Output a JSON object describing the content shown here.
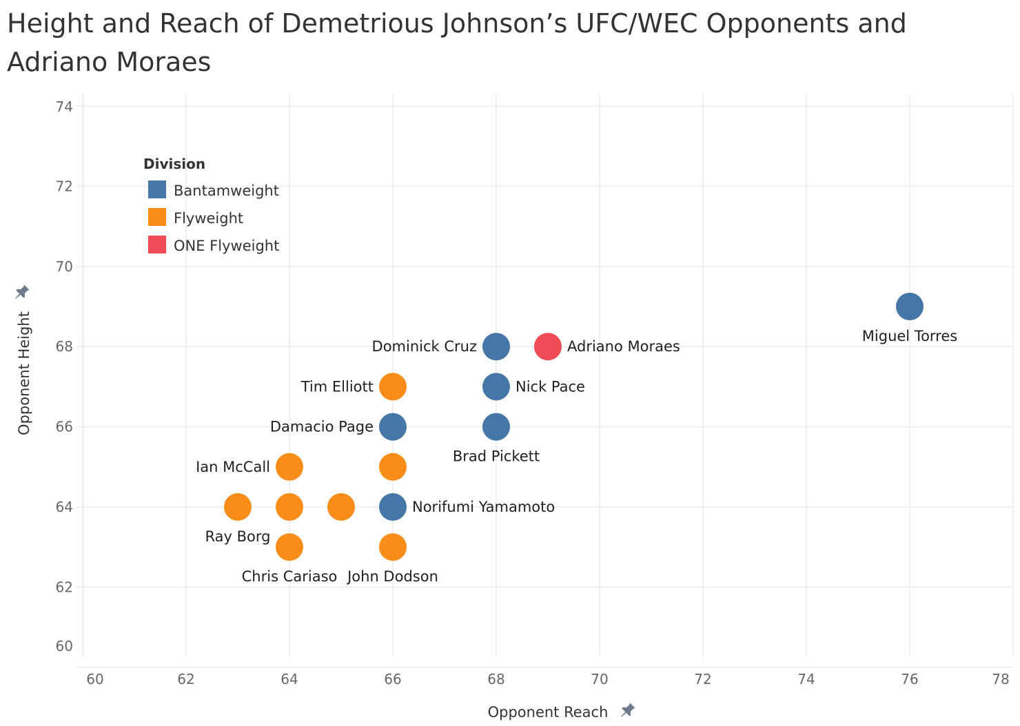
{
  "chart_data": {
    "type": "scatter",
    "title": "Height and Reach of Demetrious Johnson’s UFC/WEC Opponents and Adriano Moraes",
    "xlabel": "Opponent Reach",
    "ylabel": "Opponent Height",
    "xlim": [
      60,
      78
    ],
    "ylim": [
      60,
      74
    ],
    "x_ticks": [
      60,
      62,
      64,
      66,
      68,
      70,
      72,
      74,
      76,
      78
    ],
    "y_ticks": [
      60,
      62,
      64,
      66,
      68,
      70,
      72,
      74
    ],
    "grid": true,
    "legend": {
      "title": "Division",
      "placement": "top-left",
      "entries": [
        {
          "name": "Bantamweight",
          "color": "#4477a8"
        },
        {
          "name": "Flyweight",
          "color": "#f98d18"
        },
        {
          "name": "ONE Flyweight",
          "color": "#ef4b55"
        }
      ]
    },
    "points": [
      {
        "label": "Miguel Torres",
        "x": 76,
        "y": 69,
        "division": "Bantamweight",
        "label_pos": "below"
      },
      {
        "label": "Dominick Cruz",
        "x": 68,
        "y": 68,
        "division": "Bantamweight",
        "label_pos": "left"
      },
      {
        "label": "Adriano Moraes",
        "x": 69,
        "y": 68,
        "division": "ONE Flyweight",
        "label_pos": "right"
      },
      {
        "label": "Nick Pace",
        "x": 68,
        "y": 67,
        "division": "Bantamweight",
        "label_pos": "right"
      },
      {
        "label": "Tim Elliott",
        "x": 66,
        "y": 67,
        "division": "Flyweight",
        "label_pos": "left"
      },
      {
        "label": "Damacio Page",
        "x": 66,
        "y": 66,
        "division": "Bantamweight",
        "label_pos": "left"
      },
      {
        "label": "Brad Pickett",
        "x": 68,
        "y": 66,
        "division": "Bantamweight",
        "label_pos": "below"
      },
      {
        "label": "Ian McCall",
        "x": 64,
        "y": 65,
        "division": "Flyweight",
        "label_pos": "left"
      },
      {
        "label": "",
        "x": 66,
        "y": 65,
        "division": "Flyweight",
        "label_pos": "none"
      },
      {
        "label": "Ray Borg",
        "x": 63,
        "y": 64,
        "division": "Flyweight",
        "label_pos": "below"
      },
      {
        "label": "",
        "x": 64,
        "y": 64,
        "division": "Flyweight",
        "label_pos": "none"
      },
      {
        "label": "",
        "x": 65,
        "y": 64,
        "division": "Flyweight",
        "label_pos": "none"
      },
      {
        "label": "Norifumi Yamamoto",
        "x": 66,
        "y": 64,
        "division": "Bantamweight",
        "label_pos": "right"
      },
      {
        "label": "Chris Cariaso",
        "x": 64,
        "y": 63,
        "division": "Flyweight",
        "label_pos": "below"
      },
      {
        "label": "John Dodson",
        "x": 66,
        "y": 63,
        "division": "Flyweight",
        "label_pos": "below"
      }
    ]
  },
  "colors": {
    "grid": "#ececec",
    "axis_zero_line": "#d9d9d9",
    "pin_icon": "#6b7b8c"
  },
  "icons": {
    "x_axis_pin": "pin-icon",
    "y_axis_pin": "pin-icon"
  }
}
